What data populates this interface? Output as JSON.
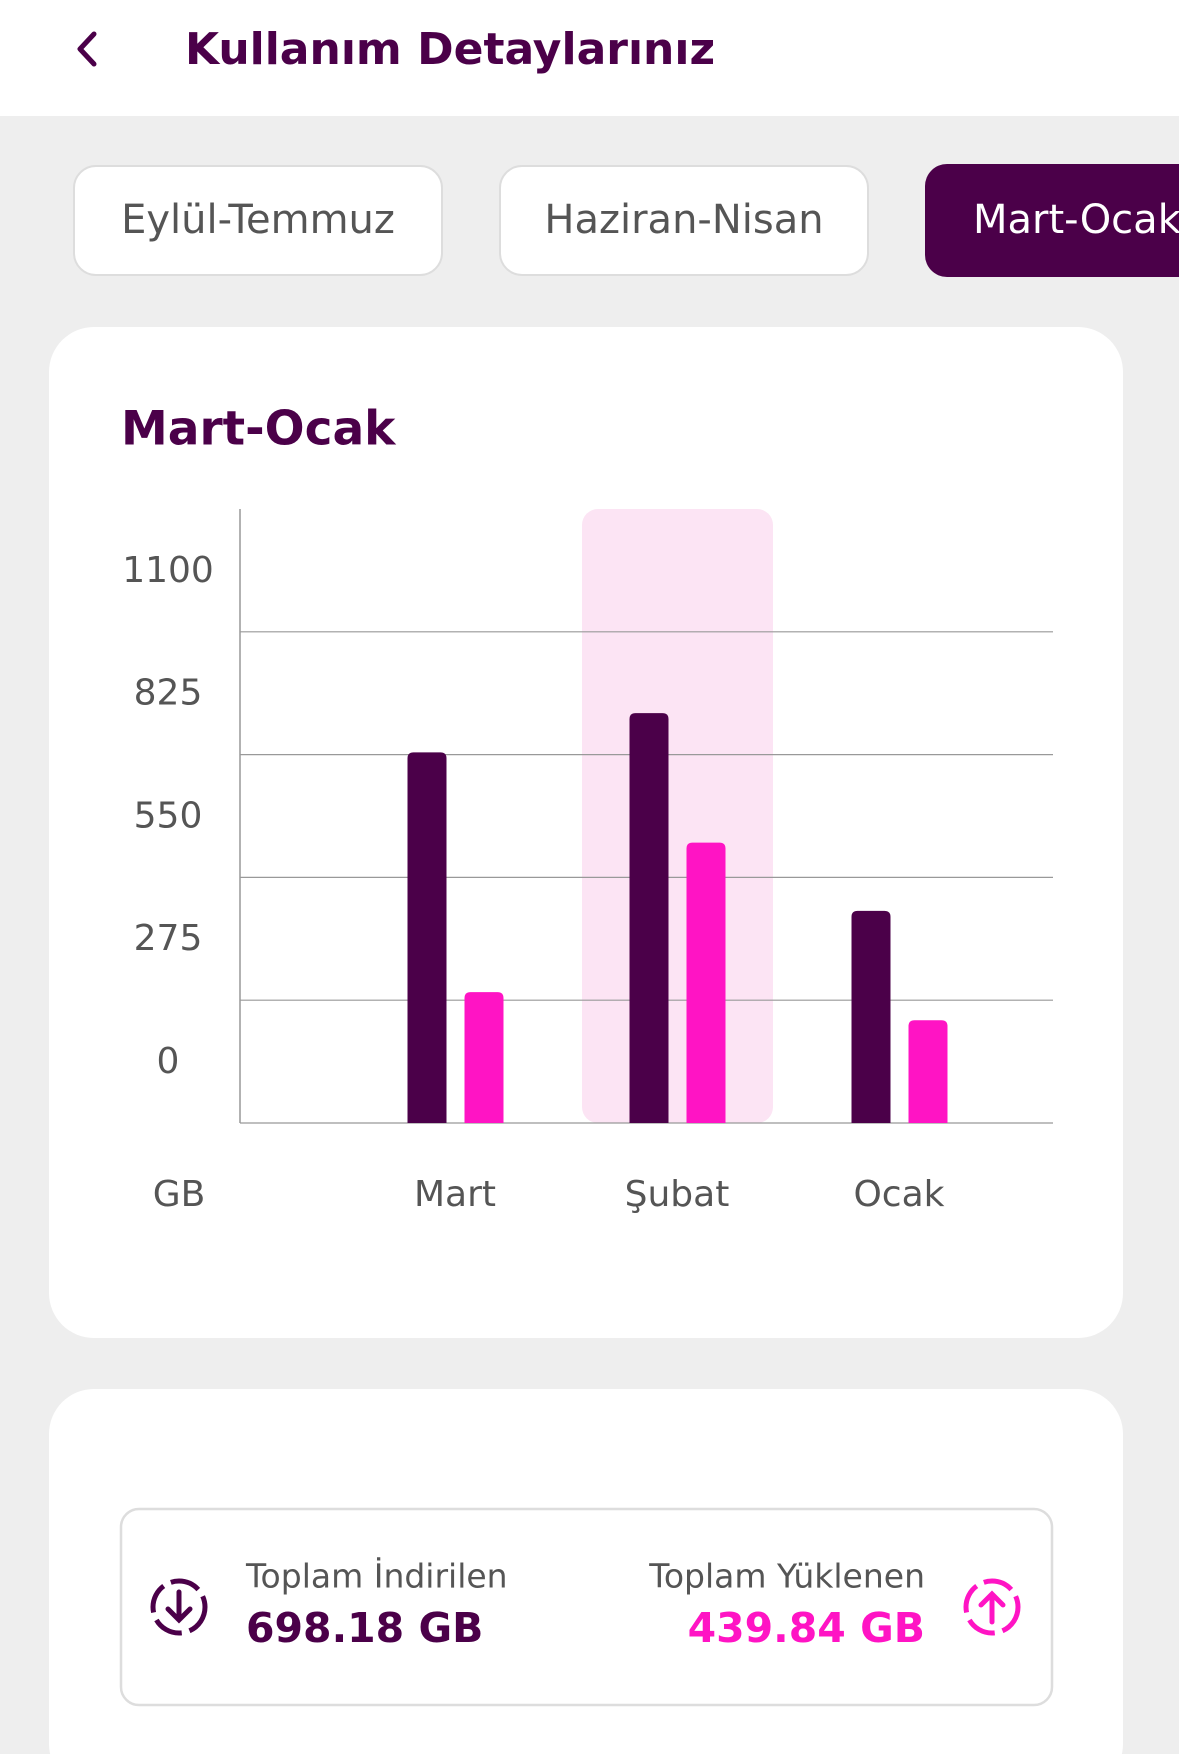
{
  "header": {
    "title": "Kullanım Detaylarınız"
  },
  "tabs": [
    "Eylül-Temmuz",
    "Haziran-Nisan",
    "Mart-Ocak"
  ],
  "chart_data": {
    "type": "bar",
    "title": "Mart-Ocak",
    "y_label": "GB",
    "categories": [
      "Mart",
      "Şubat",
      "Ocak"
    ],
    "series": [
      {
        "color": "#4b0049",
        "values": [
          830,
          918,
          475
        ]
      },
      {
        "color": "#ff14c4",
        "values": [
          293,
          628,
          230
        ]
      }
    ],
    "ylim": [
      0,
      1375
    ],
    "yticks": [
      0,
      275,
      550,
      825,
      1100
    ],
    "grid": true
  },
  "summary": {
    "download_label": "Toplam İndirilen",
    "download_value": "698.18 GB",
    "upload_label": "Toplam Yüklenen",
    "upload_value": "439.84 GB"
  }
}
